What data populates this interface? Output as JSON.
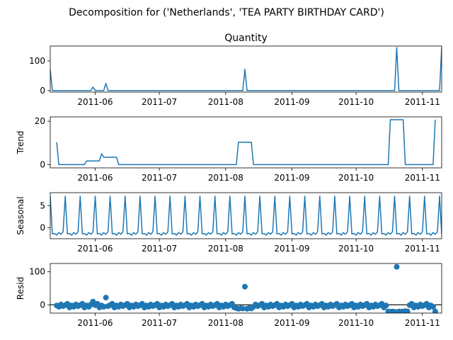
{
  "figure": {
    "suptitle": "Decomposition for ('Netherlands', 'TEA PARTY BIRTHDAY CARD')"
  },
  "colors": {
    "line": "#1f77b4",
    "zero_line": "#000000"
  },
  "x_ticks": [
    "2011-06",
    "2011-07",
    "2011-08",
    "2011-09",
    "2011-10",
    "2011-11"
  ],
  "chart_data": [
    {
      "type": "line",
      "title": "Quantity",
      "ylabel": "",
      "xlim": [
        "2011-05-11",
        "2011-11-10"
      ],
      "ylim": [
        -5,
        150
      ],
      "y_ticks": [
        0,
        100
      ],
      "series": [
        {
          "x": [
            "2011-05-11",
            "2011-05-12",
            "2011-05-30",
            "2011-05-31",
            "2011-06-01",
            "2011-06-05",
            "2011-06-06",
            "2011-06-07",
            "2011-08-09",
            "2011-08-10",
            "2011-08-11",
            "2011-10-19",
            "2011-10-20",
            "2011-10-21",
            "2011-11-09",
            "2011-11-10"
          ],
          "y": [
            70,
            0,
            0,
            12,
            0,
            0,
            24,
            0,
            0,
            72,
            0,
            0,
            145,
            0,
            0,
            145
          ]
        }
      ]
    },
    {
      "type": "line",
      "title": "",
      "ylabel": "Trend",
      "xlim": [
        "2011-05-11",
        "2011-11-10"
      ],
      "ylim": [
        -1.5,
        22
      ],
      "y_ticks": [
        0,
        20
      ],
      "series": [
        {
          "x": [
            "2011-05-14",
            "2011-05-15",
            "2011-05-27",
            "2011-05-28",
            "2011-06-03",
            "2011-06-04",
            "2011-06-05",
            "2011-06-11",
            "2011-06-12",
            "2011-08-06",
            "2011-08-07",
            "2011-08-13",
            "2011-08-14",
            "2011-10-16",
            "2011-10-17",
            "2011-10-23",
            "2011-10-24",
            "2011-11-06",
            "2011-11-07"
          ],
          "y": [
            10.3,
            0,
            0,
            1.7,
            1.7,
            5,
            3.4,
            3.4,
            0,
            0,
            10.3,
            10.3,
            0,
            0,
            20.7,
            20.7,
            0,
            0,
            20.7
          ]
        }
      ]
    },
    {
      "type": "line",
      "title": "",
      "ylabel": "Seasonal",
      "xlim": [
        "2011-05-11",
        "2011-11-10"
      ],
      "ylim": [
        -2.5,
        8
      ],
      "y_ticks": [
        0,
        5
      ],
      "period_days": 7,
      "pattern": [
        7.2,
        -1.4,
        -1.3,
        -1.7,
        -1.1,
        -1.5,
        -0.9
      ],
      "first_peak": "2011-05-18"
    },
    {
      "type": "scatter",
      "title": "",
      "ylabel": "Resid",
      "xlim": [
        "2011-05-11",
        "2011-11-10"
      ],
      "ylim": [
        -25,
        125
      ],
      "y_ticks": [
        0,
        100
      ],
      "zero_line": true,
      "baseline": [
        -2,
        -6,
        1,
        -4,
        -1,
        3,
        -8
      ],
      "window_start": "2011-05-14",
      "window_end": "2011-11-07",
      "points": [
        {
          "x": "2011-05-31",
          "y": 10
        },
        {
          "x": "2011-06-06",
          "y": 22
        },
        {
          "x": "2011-08-10",
          "y": 55
        },
        {
          "x": "2011-10-20",
          "y": 115
        },
        {
          "x": "2011-11-07",
          "y": -20
        },
        {
          "x": "2011-08-06",
          "y": -10
        },
        {
          "x": "2011-08-07",
          "y": -12
        },
        {
          "x": "2011-08-08",
          "y": -10
        },
        {
          "x": "2011-08-09",
          "y": -11
        },
        {
          "x": "2011-08-11",
          "y": -12
        },
        {
          "x": "2011-08-12",
          "y": -10
        },
        {
          "x": "2011-08-13",
          "y": -11
        },
        {
          "x": "2011-10-16",
          "y": -20
        },
        {
          "x": "2011-10-17",
          "y": -21
        },
        {
          "x": "2011-10-18",
          "y": -20
        },
        {
          "x": "2011-10-19",
          "y": -21
        },
        {
          "x": "2011-10-21",
          "y": -20
        },
        {
          "x": "2011-10-22",
          "y": -21
        },
        {
          "x": "2011-10-23",
          "y": -20
        },
        {
          "x": "2011-10-24",
          "y": -19
        },
        {
          "x": "2011-10-25",
          "y": -20
        }
      ]
    }
  ]
}
